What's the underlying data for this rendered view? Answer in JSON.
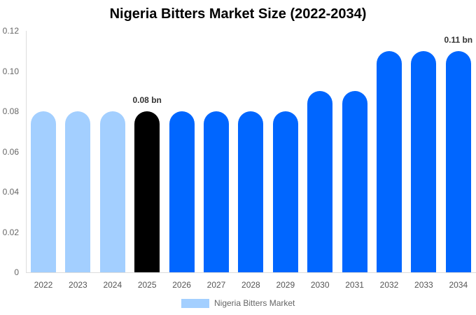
{
  "chart_data": {
    "type": "bar",
    "title": "Nigeria Bitters Market Size (2022-2034)",
    "xlabel": "",
    "ylabel": "",
    "ylim": [
      0,
      0.12
    ],
    "yticks": [
      "0",
      "0.02",
      "0.04",
      "0.06",
      "0.08",
      "0.10",
      "0.12"
    ],
    "grid": false,
    "legend_position": "bottom",
    "categories": [
      "2022",
      "2023",
      "2024",
      "2025",
      "2026",
      "2027",
      "2028",
      "2029",
      "2030",
      "2031",
      "2032",
      "2033",
      "2034"
    ],
    "series": [
      {
        "name": "Nigeria Bitters Market",
        "values": [
          0.08,
          0.08,
          0.08,
          0.08,
          0.08,
          0.08,
          0.08,
          0.08,
          0.09,
          0.09,
          0.11,
          0.11,
          0.11
        ]
      }
    ],
    "bar_colors": [
      "#a3cfff",
      "#a3cfff",
      "#a3cfff",
      "#000000",
      "#0066ff",
      "#0066ff",
      "#0066ff",
      "#0066ff",
      "#0066ff",
      "#0066ff",
      "#0066ff",
      "#0066ff",
      "#0066ff"
    ],
    "annotations": [
      {
        "category": "2025",
        "text": "0.08 bn"
      },
      {
        "category": "2034",
        "text": "0.11 bn"
      }
    ]
  },
  "legend": {
    "label": "Nigeria Bitters Market",
    "color": "#a3cfff"
  }
}
